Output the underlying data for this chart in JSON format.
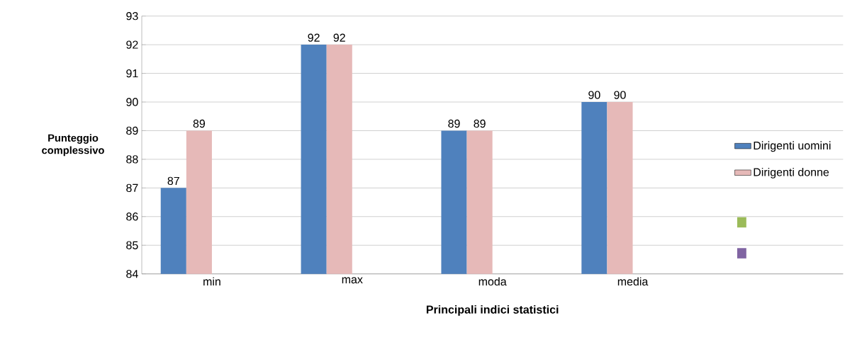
{
  "chart_data": {
    "type": "bar",
    "xlabel": "Principali indici statistici",
    "ylabel": "Punteggio complessivo",
    "categories": [
      "min",
      "max",
      "moda",
      "media",
      null
    ],
    "series": [
      {
        "name": "Dirigenti uomini",
        "color": "#4f81bd",
        "values": [
          87,
          92,
          89,
          90,
          null
        ]
      },
      {
        "name": "Dirigenti donne",
        "color": "#e6b9b8",
        "values": [
          89,
          92,
          89,
          90,
          null
        ]
      },
      {
        "color": "#9bbb59",
        "values": [
          null,
          null,
          null,
          null,
          null
        ]
      },
      {
        "color": "#8064a2",
        "values": [
          null,
          null,
          null,
          null,
          null
        ]
      }
    ],
    "ylim": [
      84,
      93
    ],
    "yticks": [
      84,
      85,
      86,
      87,
      88,
      89,
      90,
      91,
      92,
      93
    ],
    "grid": "y",
    "legend": "right",
    "data_labels": true
  }
}
